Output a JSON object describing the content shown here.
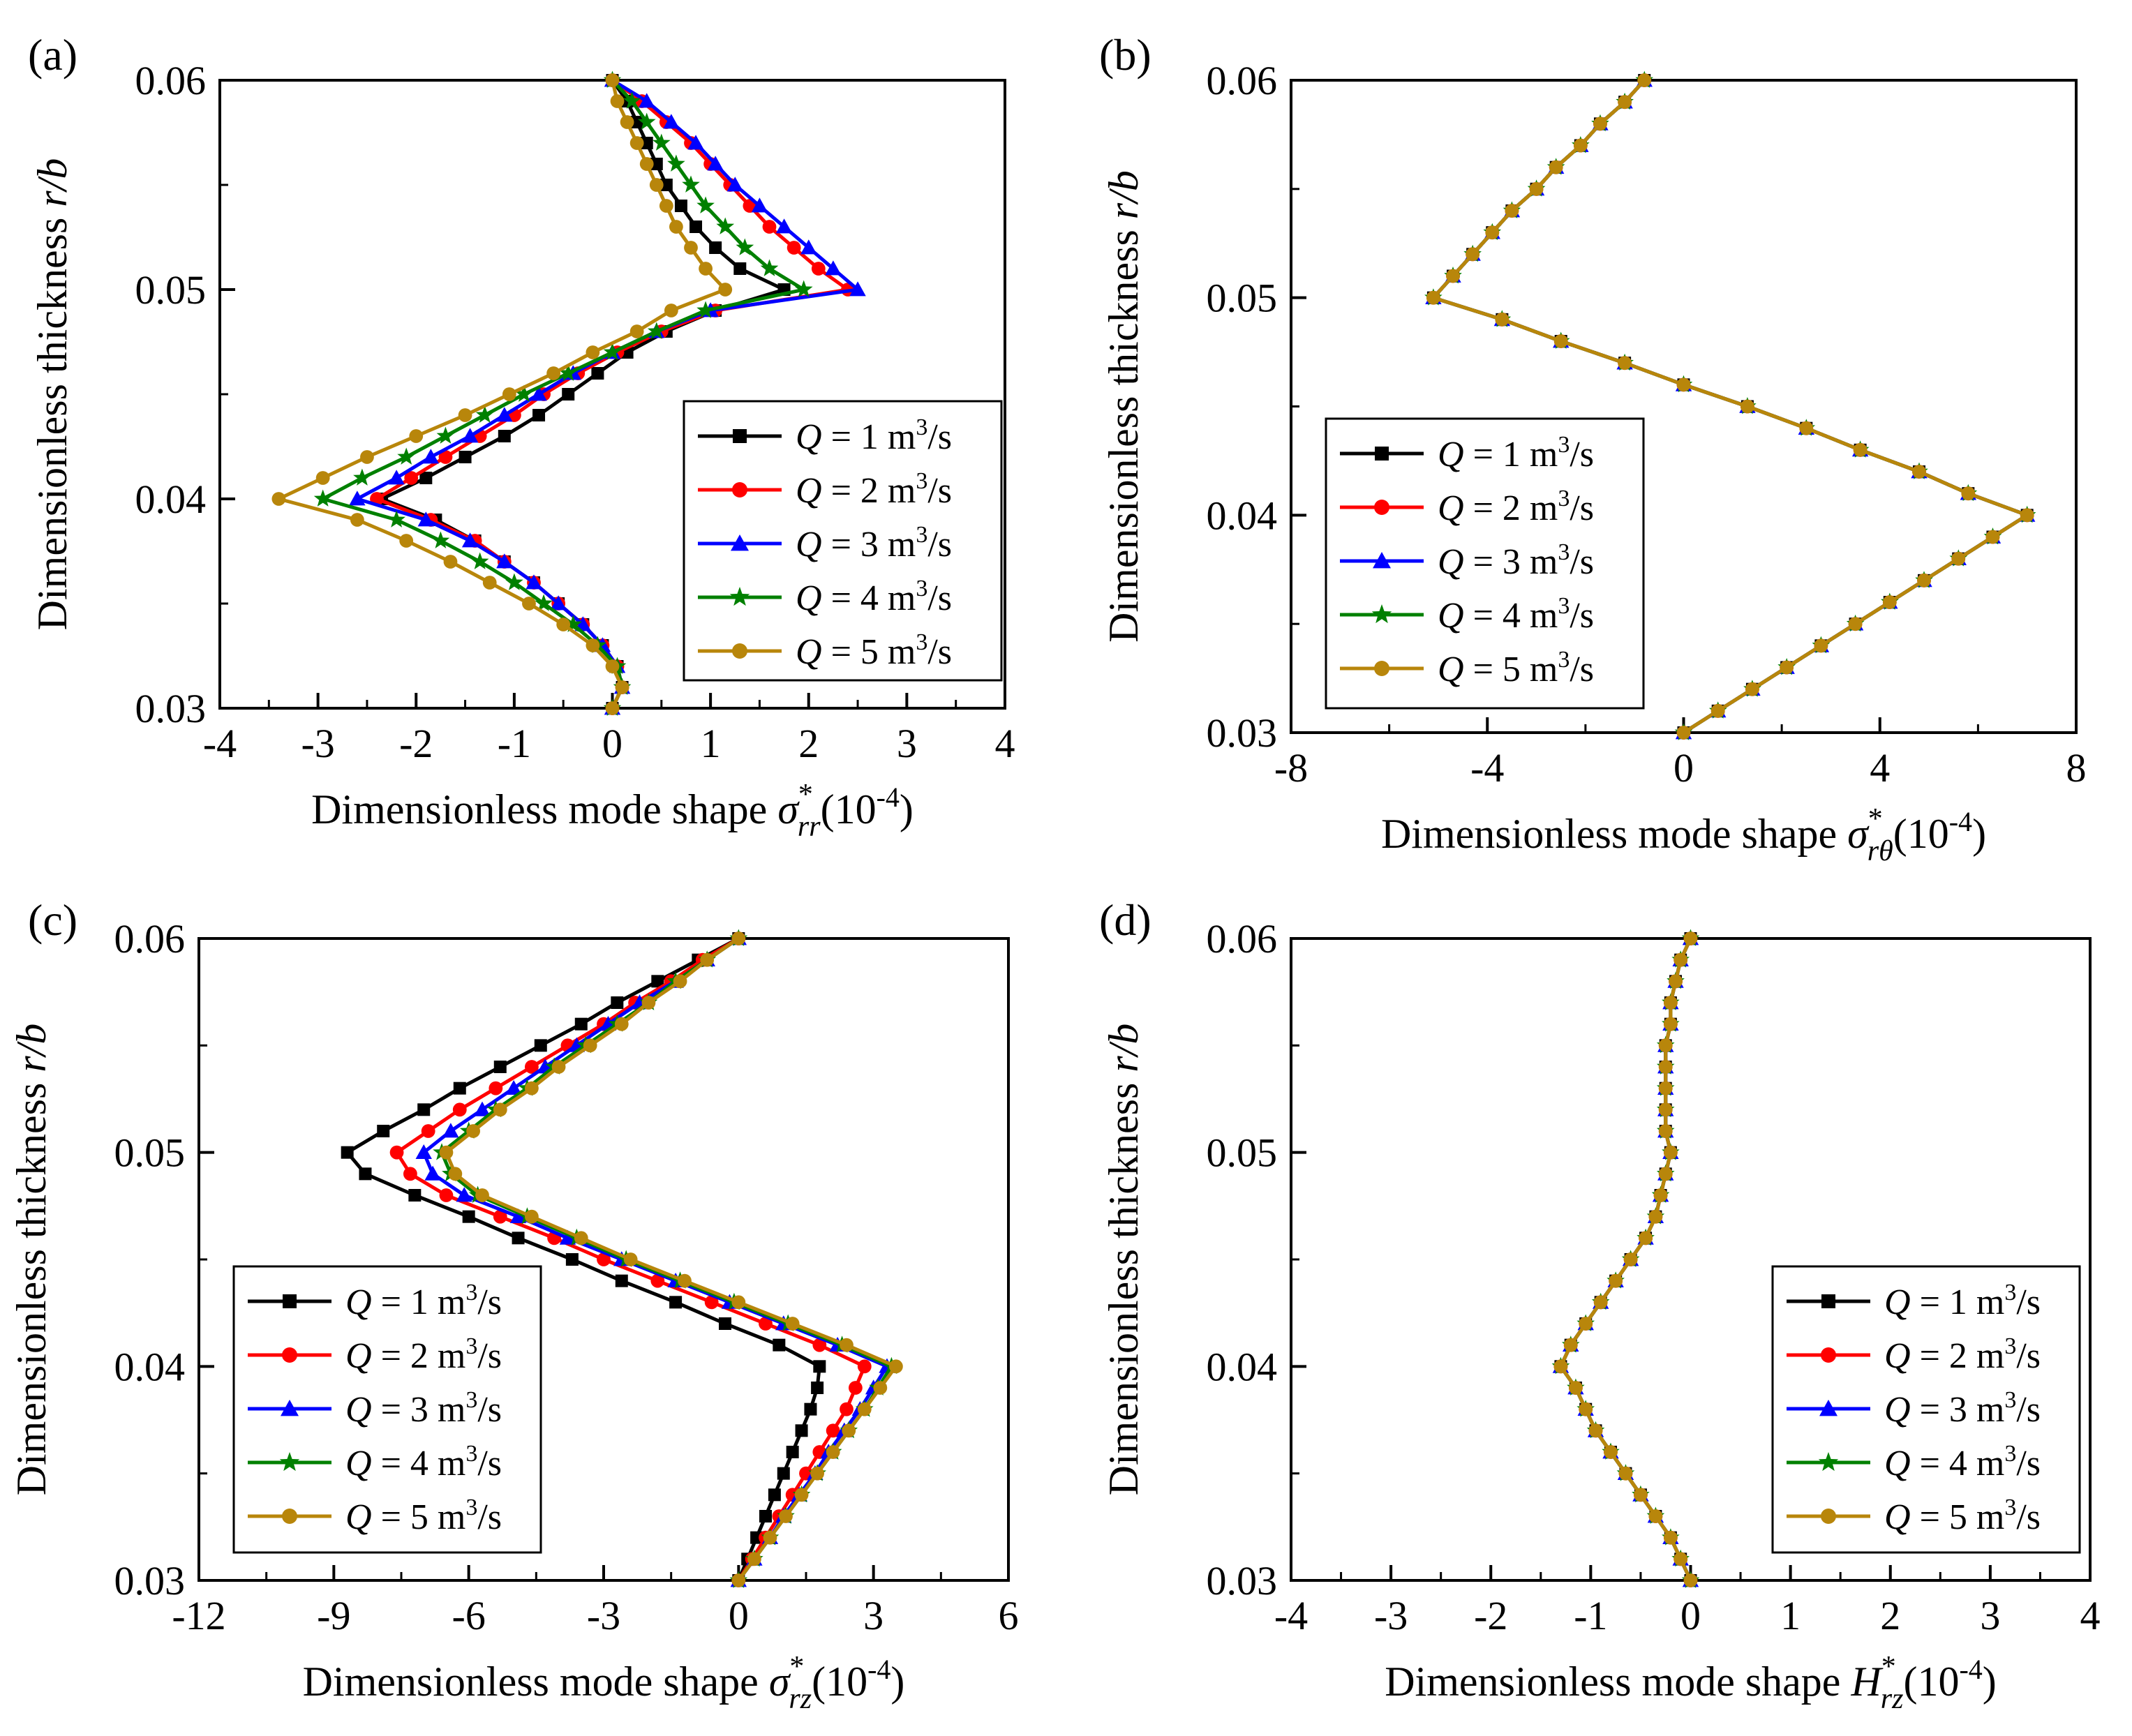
{
  "figure": {
    "legend_entries": [
      {
        "q_symbol": "Q",
        "label": " = 1 m",
        "sup": "3",
        "unit": "/s",
        "color": "#000000",
        "marker": "square"
      },
      {
        "q_symbol": "Q",
        "label": " = 2 m",
        "sup": "3",
        "unit": "/s",
        "color": "#ff0000",
        "marker": "circle"
      },
      {
        "q_symbol": "Q",
        "label": " = 3 m",
        "sup": "3",
        "unit": "/s",
        "color": "#0000ff",
        "marker": "triangle"
      },
      {
        "q_symbol": "Q",
        "label": " = 4 m",
        "sup": "3",
        "unit": "/s",
        "color": "#008000",
        "marker": "star"
      },
      {
        "q_symbol": "Q",
        "label": " = 5 m",
        "sup": "3",
        "unit": "/s",
        "color": "#b8860b",
        "marker": "circle"
      }
    ]
  },
  "chart_data": [
    {
      "panel": "(a)",
      "type": "line",
      "ylabel_text": "Dimensionless thickness ",
      "ylabel_var": "r/b",
      "xlabel_text": "Dimensionless mode shape ",
      "xlabel_sym": "σ",
      "xlabel_sup": "*",
      "xlabel_sub": "rr",
      "xlabel_scale": "(10",
      "xlabel_exp": "-4",
      "xlabel_close": ")",
      "xlim": [
        -4,
        4
      ],
      "ylim": [
        0.03,
        0.06
      ],
      "xticks": [
        -4,
        -3,
        -2,
        -1,
        0,
        1,
        2,
        3,
        4
      ],
      "xtick_labels": [
        "-4",
        "-3",
        "-2",
        "-1",
        "0",
        "1",
        "2",
        "3",
        "4"
      ],
      "yticks": [
        0.03,
        0.04,
        0.05,
        0.06
      ],
      "ytick_labels": [
        "0.03",
        "0.04",
        "0.05",
        "0.06"
      ],
      "legend_position": "right-middle",
      "y": [
        0.03,
        0.031,
        0.032,
        0.033,
        0.034,
        0.035,
        0.036,
        0.037,
        0.038,
        0.039,
        0.04,
        0.041,
        0.042,
        0.043,
        0.044,
        0.045,
        0.046,
        0.047,
        0.048,
        0.049,
        0.05,
        0.051,
        0.052,
        0.053,
        0.054,
        0.055,
        0.056,
        0.057,
        0.058,
        0.059,
        0.06
      ],
      "series": [
        {
          "name": "Q = 1 m3/s",
          "x": [
            0.0,
            0.1,
            0.05,
            -0.1,
            -0.3,
            -0.55,
            -0.8,
            -1.1,
            -1.4,
            -1.8,
            -2.35,
            -1.9,
            -1.5,
            -1.1,
            -0.75,
            -0.45,
            -0.15,
            0.15,
            0.55,
            1.05,
            1.75,
            1.3,
            1.05,
            0.85,
            0.7,
            0.55,
            0.45,
            0.35,
            0.25,
            0.15,
            0.0
          ]
        },
        {
          "name": "Q = 2 m3/s",
          "x": [
            0.0,
            0.1,
            0.05,
            -0.1,
            -0.3,
            -0.55,
            -0.8,
            -1.1,
            -1.4,
            -1.85,
            -2.4,
            -2.05,
            -1.7,
            -1.35,
            -1.0,
            -0.7,
            -0.35,
            0.05,
            0.5,
            1.05,
            2.4,
            2.1,
            1.85,
            1.6,
            1.4,
            1.2,
            1.0,
            0.8,
            0.55,
            0.3,
            0.0
          ]
        },
        {
          "name": "Q = 3 m3/s",
          "x": [
            0.0,
            0.1,
            0.05,
            -0.1,
            -0.3,
            -0.55,
            -0.8,
            -1.1,
            -1.45,
            -1.9,
            -2.6,
            -2.2,
            -1.85,
            -1.45,
            -1.1,
            -0.75,
            -0.4,
            0.0,
            0.45,
            1.0,
            2.5,
            2.25,
            2.0,
            1.75,
            1.5,
            1.25,
            1.05,
            0.85,
            0.6,
            0.35,
            0.0
          ]
        },
        {
          "name": "Q = 4 m3/s",
          "x": [
            0.0,
            0.1,
            0.05,
            -0.15,
            -0.4,
            -0.7,
            -1.0,
            -1.35,
            -1.75,
            -2.2,
            -2.95,
            -2.55,
            -2.1,
            -1.7,
            -1.3,
            -0.9,
            -0.45,
            0.0,
            0.45,
            0.95,
            1.95,
            1.6,
            1.35,
            1.15,
            0.95,
            0.8,
            0.65,
            0.5,
            0.35,
            0.2,
            0.0
          ]
        },
        {
          "name": "Q = 5 m3/s",
          "x": [
            0.0,
            0.1,
            0.0,
            -0.2,
            -0.5,
            -0.85,
            -1.25,
            -1.65,
            -2.1,
            -2.6,
            -3.4,
            -2.95,
            -2.5,
            -2.0,
            -1.5,
            -1.05,
            -0.6,
            -0.2,
            0.25,
            0.6,
            1.15,
            0.95,
            0.8,
            0.65,
            0.55,
            0.45,
            0.35,
            0.25,
            0.15,
            0.05,
            0.0
          ]
        }
      ]
    },
    {
      "panel": "(b)",
      "type": "line",
      "ylabel_text": "Dimensionless thickness ",
      "ylabel_var": "r/b",
      "xlabel_text": "Dimensionless mode shape ",
      "xlabel_sym": "σ",
      "xlabel_sup": "*",
      "xlabel_sub": "rθ",
      "xlabel_scale": "(10",
      "xlabel_exp": "-4",
      "xlabel_close": ")",
      "xlim": [
        -8,
        8
      ],
      "ylim": [
        0.03,
        0.06
      ],
      "xticks": [
        -8,
        -4,
        0,
        4,
        8
      ],
      "xtick_labels": [
        "-8",
        "-4",
        "0",
        "4",
        "8"
      ],
      "yticks": [
        0.03,
        0.04,
        0.05,
        0.06
      ],
      "ytick_labels": [
        "0.03",
        "0.04",
        "0.05",
        "0.06"
      ],
      "legend_position": "left-middle",
      "y": [
        0.03,
        0.031,
        0.032,
        0.033,
        0.034,
        0.035,
        0.036,
        0.037,
        0.038,
        0.039,
        0.04,
        0.041,
        0.042,
        0.043,
        0.044,
        0.045,
        0.046,
        0.047,
        0.048,
        0.049,
        0.05,
        0.051,
        0.052,
        0.053,
        0.054,
        0.055,
        0.056,
        0.057,
        0.058,
        0.059,
        0.06
      ],
      "series": [
        {
          "name": "Q = 1 m3/s",
          "x": [
            0.0,
            0.7,
            1.4,
            2.1,
            2.8,
            3.5,
            4.2,
            4.9,
            5.6,
            6.3,
            7.0,
            5.8,
            4.8,
            3.6,
            2.5,
            1.3,
            0.0,
            -1.2,
            -2.5,
            -3.7,
            -5.1,
            -4.7,
            -4.3,
            -3.9,
            -3.5,
            -3.0,
            -2.6,
            -2.1,
            -1.7,
            -1.2,
            -0.8
          ]
        },
        {
          "name": "Q = 2 m3/s",
          "x": [
            0.0,
            0.7,
            1.4,
            2.1,
            2.8,
            3.5,
            4.2,
            4.9,
            5.6,
            6.3,
            7.0,
            5.8,
            4.8,
            3.6,
            2.5,
            1.3,
            0.0,
            -1.2,
            -2.5,
            -3.7,
            -5.1,
            -4.7,
            -4.3,
            -3.9,
            -3.5,
            -3.0,
            -2.6,
            -2.1,
            -1.7,
            -1.2,
            -0.8
          ]
        },
        {
          "name": "Q = 3 m3/s",
          "x": [
            0.0,
            0.7,
            1.4,
            2.1,
            2.8,
            3.5,
            4.2,
            4.9,
            5.6,
            6.3,
            7.0,
            5.8,
            4.8,
            3.6,
            2.5,
            1.3,
            0.0,
            -1.2,
            -2.5,
            -3.7,
            -5.1,
            -4.7,
            -4.3,
            -3.9,
            -3.5,
            -3.0,
            -2.6,
            -2.1,
            -1.7,
            -1.2,
            -0.8
          ]
        },
        {
          "name": "Q = 4 m3/s",
          "x": [
            0.0,
            0.7,
            1.4,
            2.1,
            2.8,
            3.5,
            4.2,
            4.9,
            5.6,
            6.3,
            7.0,
            5.8,
            4.8,
            3.6,
            2.5,
            1.3,
            0.0,
            -1.2,
            -2.5,
            -3.7,
            -5.1,
            -4.7,
            -4.3,
            -3.9,
            -3.5,
            -3.0,
            -2.6,
            -2.1,
            -1.7,
            -1.2,
            -0.8
          ]
        },
        {
          "name": "Q = 5 m3/s",
          "x": [
            0.0,
            0.7,
            1.4,
            2.1,
            2.8,
            3.5,
            4.2,
            4.9,
            5.6,
            6.3,
            7.0,
            5.8,
            4.8,
            3.6,
            2.5,
            1.3,
            0.0,
            -1.2,
            -2.5,
            -3.7,
            -5.1,
            -4.7,
            -4.3,
            -3.9,
            -3.5,
            -3.0,
            -2.6,
            -2.1,
            -1.7,
            -1.2,
            -0.8
          ]
        }
      ]
    },
    {
      "panel": "(c)",
      "type": "line",
      "ylabel_text": "Dimensionless thickness ",
      "ylabel_var": "r/b",
      "xlabel_text": "Dimensionless mode shape ",
      "xlabel_sym": "σ",
      "xlabel_sup": "*",
      "xlabel_sub": "rz",
      "xlabel_scale": "(10",
      "xlabel_exp": "-4",
      "xlabel_close": ")",
      "xlim": [
        -12,
        6
      ],
      "ylim": [
        0.03,
        0.06
      ],
      "xticks": [
        -12,
        -9,
        -6,
        -3,
        0,
        3,
        6
      ],
      "xtick_labels": [
        "-12",
        "-9",
        "-6",
        "-3",
        "0",
        "3",
        "6"
      ],
      "yticks": [
        0.03,
        0.04,
        0.05,
        0.06
      ],
      "ytick_labels": [
        "0.03",
        "0.04",
        "0.05",
        "0.06"
      ],
      "legend_position": "left-bottom",
      "y": [
        0.03,
        0.031,
        0.032,
        0.033,
        0.034,
        0.035,
        0.036,
        0.037,
        0.038,
        0.039,
        0.04,
        0.041,
        0.042,
        0.043,
        0.044,
        0.045,
        0.046,
        0.047,
        0.048,
        0.049,
        0.05,
        0.051,
        0.052,
        0.053,
        0.054,
        0.055,
        0.056,
        0.057,
        0.058,
        0.059,
        0.06
      ],
      "series": [
        {
          "name": "Q = 1 m3/s",
          "x": [
            0.0,
            0.2,
            0.4,
            0.6,
            0.8,
            1.0,
            1.2,
            1.4,
            1.6,
            1.75,
            1.8,
            0.9,
            -0.3,
            -1.4,
            -2.6,
            -3.7,
            -4.9,
            -6.0,
            -7.2,
            -8.3,
            -8.7,
            -7.9,
            -7.0,
            -6.2,
            -5.3,
            -4.4,
            -3.5,
            -2.7,
            -1.8,
            -0.9,
            0.0
          ]
        },
        {
          "name": "Q = 2 m3/s",
          "x": [
            0.0,
            0.3,
            0.6,
            0.9,
            1.2,
            1.5,
            1.8,
            2.1,
            2.4,
            2.6,
            2.8,
            1.8,
            0.6,
            -0.6,
            -1.8,
            -3.0,
            -4.1,
            -5.3,
            -6.5,
            -7.3,
            -7.6,
            -6.9,
            -6.2,
            -5.4,
            -4.6,
            -3.8,
            -3.0,
            -2.3,
            -1.5,
            -0.8,
            0.0
          ]
        },
        {
          "name": "Q = 3 m3/s",
          "x": [
            0.0,
            0.35,
            0.7,
            1.0,
            1.35,
            1.7,
            2.0,
            2.35,
            2.7,
            3.0,
            3.3,
            2.2,
            1.0,
            -0.2,
            -1.4,
            -2.6,
            -3.8,
            -4.9,
            -6.1,
            -6.8,
            -7.0,
            -6.4,
            -5.7,
            -5.0,
            -4.3,
            -3.6,
            -2.9,
            -2.2,
            -1.4,
            -0.7,
            0.0
          ]
        },
        {
          "name": "Q = 4 m3/s",
          "x": [
            0.0,
            0.35,
            0.7,
            1.05,
            1.4,
            1.75,
            2.1,
            2.45,
            2.8,
            3.1,
            3.4,
            2.3,
            1.1,
            -0.1,
            -1.3,
            -2.5,
            -3.6,
            -4.7,
            -5.8,
            -6.4,
            -6.6,
            -6.0,
            -5.4,
            -4.7,
            -4.1,
            -3.4,
            -2.7,
            -2.0,
            -1.4,
            -0.7,
            0.0
          ]
        },
        {
          "name": "Q = 5 m3/s",
          "x": [
            0.0,
            0.35,
            0.7,
            1.05,
            1.4,
            1.75,
            2.1,
            2.45,
            2.8,
            3.15,
            3.5,
            2.4,
            1.2,
            0.0,
            -1.2,
            -2.4,
            -3.5,
            -4.6,
            -5.7,
            -6.3,
            -6.5,
            -5.9,
            -5.3,
            -4.6,
            -4.0,
            -3.3,
            -2.6,
            -2.0,
            -1.3,
            -0.7,
            0.0
          ]
        }
      ]
    },
    {
      "panel": "(d)",
      "type": "line",
      "ylabel_text": "Dimensionless thickness ",
      "ylabel_var": "r/b",
      "xlabel_text": "Dimensionless mode shape ",
      "xlabel_sym": "H",
      "xlabel_sup": "*",
      "xlabel_sub": "rz",
      "xlabel_scale": "(10",
      "xlabel_exp": "-4",
      "xlabel_close": ")",
      "xlim": [
        -4,
        4
      ],
      "ylim": [
        0.03,
        0.06
      ],
      "xticks": [
        -4,
        -3,
        -2,
        -1,
        0,
        1,
        2,
        3,
        4
      ],
      "xtick_labels": [
        "-4",
        "-3",
        "-2",
        "-1",
        "0",
        "1",
        "2",
        "3",
        "4"
      ],
      "yticks": [
        0.03,
        0.04,
        0.05,
        0.06
      ],
      "ytick_labels": [
        "0.03",
        "0.04",
        "0.05",
        "0.06"
      ],
      "legend_position": "right-bottom",
      "y": [
        0.03,
        0.031,
        0.032,
        0.033,
        0.034,
        0.035,
        0.036,
        0.037,
        0.038,
        0.039,
        0.04,
        0.041,
        0.042,
        0.043,
        0.044,
        0.045,
        0.046,
        0.047,
        0.048,
        0.049,
        0.05,
        0.051,
        0.052,
        0.053,
        0.054,
        0.055,
        0.056,
        0.057,
        0.058,
        0.059,
        0.06
      ],
      "series": [
        {
          "name": "Q = 1 m3/s",
          "x": [
            0.0,
            -0.1,
            -0.2,
            -0.35,
            -0.5,
            -0.65,
            -0.8,
            -0.95,
            -1.05,
            -1.15,
            -1.3,
            -1.2,
            -1.05,
            -0.9,
            -0.75,
            -0.6,
            -0.45,
            -0.35,
            -0.3,
            -0.25,
            -0.2,
            -0.25,
            -0.25,
            -0.25,
            -0.25,
            -0.25,
            -0.2,
            -0.2,
            -0.15,
            -0.1,
            0.0
          ]
        },
        {
          "name": "Q = 2 m3/s",
          "x": [
            0.0,
            -0.1,
            -0.2,
            -0.35,
            -0.5,
            -0.65,
            -0.8,
            -0.95,
            -1.05,
            -1.15,
            -1.3,
            -1.2,
            -1.05,
            -0.9,
            -0.75,
            -0.6,
            -0.45,
            -0.35,
            -0.3,
            -0.25,
            -0.2,
            -0.25,
            -0.25,
            -0.25,
            -0.25,
            -0.25,
            -0.2,
            -0.2,
            -0.15,
            -0.1,
            0.0
          ]
        },
        {
          "name": "Q = 3 m3/s",
          "x": [
            0.0,
            -0.1,
            -0.2,
            -0.35,
            -0.5,
            -0.65,
            -0.8,
            -0.95,
            -1.05,
            -1.15,
            -1.3,
            -1.2,
            -1.05,
            -0.9,
            -0.75,
            -0.6,
            -0.45,
            -0.35,
            -0.3,
            -0.25,
            -0.2,
            -0.25,
            -0.25,
            -0.25,
            -0.25,
            -0.25,
            -0.2,
            -0.2,
            -0.15,
            -0.1,
            0.0
          ]
        },
        {
          "name": "Q = 4 m3/s",
          "x": [
            0.0,
            -0.1,
            -0.2,
            -0.35,
            -0.5,
            -0.65,
            -0.8,
            -0.95,
            -1.05,
            -1.15,
            -1.3,
            -1.2,
            -1.05,
            -0.9,
            -0.75,
            -0.6,
            -0.45,
            -0.35,
            -0.3,
            -0.25,
            -0.2,
            -0.25,
            -0.25,
            -0.25,
            -0.25,
            -0.25,
            -0.2,
            -0.2,
            -0.15,
            -0.1,
            0.0
          ]
        },
        {
          "name": "Q = 5 m3/s",
          "x": [
            0.0,
            -0.1,
            -0.2,
            -0.35,
            -0.5,
            -0.65,
            -0.8,
            -0.95,
            -1.05,
            -1.15,
            -1.3,
            -1.2,
            -1.05,
            -0.9,
            -0.75,
            -0.6,
            -0.45,
            -0.35,
            -0.3,
            -0.25,
            -0.2,
            -0.25,
            -0.25,
            -0.25,
            -0.25,
            -0.25,
            -0.2,
            -0.2,
            -0.15,
            -0.1,
            0.0
          ]
        }
      ]
    }
  ]
}
